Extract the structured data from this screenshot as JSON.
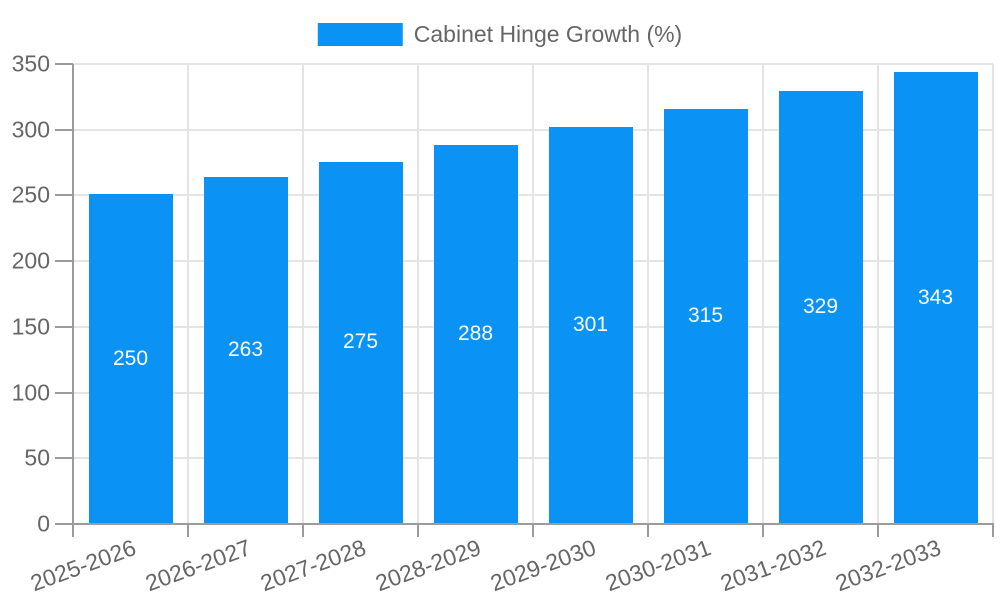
{
  "chart_data": {
    "type": "bar",
    "title": "",
    "legend": {
      "position": "top"
    },
    "categories": [
      "2025-2026",
      "2026-2027",
      "2027-2028",
      "2028-2029",
      "2029-2030",
      "2030-2031",
      "2031-2032",
      "2032-2033"
    ],
    "series": [
      {
        "name": "Cabinet Hinge Growth (%)",
        "color": "#0a93f5",
        "values": [
          250,
          263,
          275,
          288,
          301,
          315,
          329,
          343
        ]
      }
    ],
    "value_labels": {
      "visible": true,
      "color": "#ffffff",
      "position": "center"
    },
    "y_axis": {
      "min": 0,
      "max": 350,
      "tick_step": 50,
      "tick_labels": [
        "0",
        "50",
        "100",
        "150",
        "200",
        "250",
        "300",
        "350"
      ]
    },
    "x_axis": {
      "label_rotation_deg": -20
    },
    "grid": {
      "horizontal": true,
      "vertical": true,
      "color": "#e4e4e4"
    },
    "colors": {
      "axis_line": "#9b9b9b",
      "tick_label": "#666666",
      "legend_text": "#666666",
      "background": "#ffffff"
    }
  }
}
